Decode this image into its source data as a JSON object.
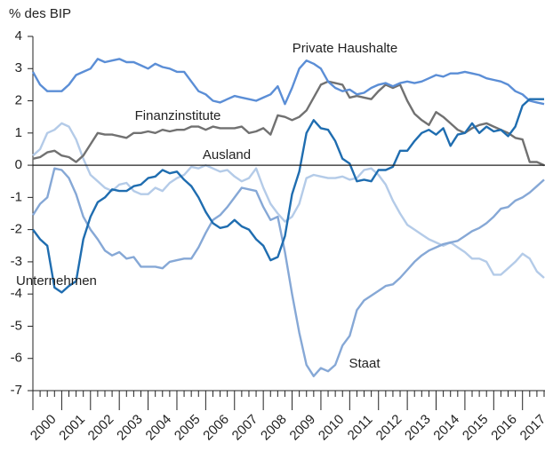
{
  "chart_data": {
    "type": "line",
    "y_label": "% des BIP",
    "categories": [
      "2000",
      null,
      null,
      null,
      "2001",
      null,
      null,
      null,
      "2002",
      null,
      null,
      null,
      "2003",
      null,
      null,
      null,
      "2004",
      null,
      null,
      null,
      "2005",
      null,
      null,
      null,
      "2006",
      null,
      null,
      null,
      "2007",
      null,
      null,
      null,
      "2008",
      null,
      null,
      null,
      "2009",
      null,
      null,
      null,
      "2010",
      null,
      null,
      null,
      "2011",
      null,
      null,
      null,
      "2012",
      null,
      null,
      null,
      "2013",
      null,
      null,
      null,
      "2014",
      null,
      null,
      null,
      "2015",
      null,
      null,
      null,
      "2016",
      null,
      null,
      null,
      "2017",
      null,
      null,
      null
    ],
    "ylim": [
      -7,
      4
    ],
    "yticks": [
      -7,
      -6,
      -5,
      -4,
      -3,
      -2,
      -1,
      0,
      1,
      2,
      3,
      4
    ],
    "series": [
      {
        "name": "Private Haushalte",
        "color": "#5b8ed6",
        "values": [
          2.9,
          2.5,
          2.3,
          2.3,
          2.3,
          2.5,
          2.8,
          2.9,
          3.0,
          3.3,
          3.2,
          3.25,
          3.3,
          3.2,
          3.2,
          3.1,
          3.0,
          3.15,
          3.05,
          3.0,
          2.9,
          2.9,
          2.6,
          2.3,
          2.2,
          2.0,
          1.95,
          2.05,
          2.15,
          2.1,
          2.05,
          2.0,
          2.1,
          2.2,
          2.45,
          1.9,
          2.4,
          3.0,
          3.25,
          3.15,
          3.0,
          2.6,
          2.4,
          2.3,
          2.35,
          2.2,
          2.25,
          2.4,
          2.5,
          2.55,
          2.45,
          2.55,
          2.6,
          2.55,
          2.6,
          2.7,
          2.8,
          2.75,
          2.85,
          2.85,
          2.9,
          2.85,
          2.8,
          2.7,
          2.65,
          2.6,
          2.5,
          2.3,
          2.2,
          2.0,
          1.95,
          1.9
        ]
      },
      {
        "name": "Finanzinstitute",
        "color": "#717171",
        "values": [
          0.2,
          0.25,
          0.4,
          0.45,
          0.3,
          0.25,
          0.1,
          0.3,
          0.65,
          1.0,
          0.95,
          0.95,
          0.9,
          0.85,
          1.0,
          1.0,
          1.05,
          1.0,
          1.1,
          1.05,
          1.1,
          1.1,
          1.2,
          1.2,
          1.1,
          1.2,
          1.15,
          1.15,
          1.15,
          1.2,
          1.0,
          1.05,
          1.15,
          0.95,
          1.55,
          1.5,
          1.4,
          1.5,
          1.7,
          2.1,
          2.5,
          2.6,
          2.55,
          2.5,
          2.1,
          2.15,
          2.1,
          2.05,
          2.3,
          2.5,
          2.4,
          2.5,
          2.0,
          1.6,
          1.4,
          1.25,
          1.65,
          1.5,
          1.3,
          1.1,
          1.0,
          1.15,
          1.25,
          1.3,
          1.2,
          1.1,
          1.0,
          0.85,
          0.8,
          0.1,
          0.1,
          0.0
        ]
      },
      {
        "name": "Ausland",
        "color": "#b4cbe8",
        "values": [
          0.3,
          0.5,
          1.0,
          1.1,
          1.3,
          1.2,
          0.8,
          0.2,
          -0.3,
          -0.5,
          -0.7,
          -0.8,
          -0.6,
          -0.55,
          -0.8,
          -0.9,
          -0.9,
          -0.7,
          -0.8,
          -0.55,
          -0.4,
          -0.3,
          -0.05,
          -0.1,
          0.0,
          -0.1,
          -0.2,
          -0.15,
          -0.35,
          -0.5,
          -0.4,
          -0.1,
          -0.7,
          -1.2,
          -1.5,
          -1.75,
          -1.6,
          -1.2,
          -0.4,
          -0.3,
          -0.35,
          -0.4,
          -0.4,
          -0.35,
          -0.45,
          -0.4,
          -0.15,
          -0.1,
          -0.3,
          -0.6,
          -1.1,
          -1.5,
          -1.85,
          -2.0,
          -2.15,
          -2.3,
          -2.4,
          -2.5,
          -2.4,
          -2.55,
          -2.7,
          -2.9,
          -2.9,
          -3.0,
          -3.4,
          -3.4,
          -3.2,
          -3.0,
          -2.75,
          -2.9,
          -3.3,
          -3.5
        ]
      },
      {
        "name": "Unternehmen",
        "color": "#1f6db0",
        "values": [
          -2.0,
          -2.3,
          -2.5,
          -3.8,
          -3.95,
          -3.75,
          -3.6,
          -2.3,
          -1.6,
          -1.15,
          -1.0,
          -0.75,
          -0.8,
          -0.8,
          -0.65,
          -0.6,
          -0.4,
          -0.35,
          -0.15,
          -0.25,
          -0.2,
          -0.45,
          -0.65,
          -1.0,
          -1.45,
          -1.8,
          -1.95,
          -1.9,
          -1.7,
          -1.9,
          -2.0,
          -2.3,
          -2.5,
          -2.95,
          -2.85,
          -2.2,
          -0.9,
          -0.2,
          1.0,
          1.4,
          1.15,
          1.1,
          0.75,
          0.2,
          0.05,
          -0.5,
          -0.45,
          -0.5,
          -0.15,
          -0.15,
          -0.05,
          0.45,
          0.45,
          0.75,
          1.0,
          1.1,
          0.95,
          1.15,
          0.6,
          0.95,
          1.0,
          1.3,
          1.0,
          1.2,
          1.05,
          1.1,
          0.9,
          1.2,
          1.85,
          2.05,
          2.05,
          2.05
        ]
      },
      {
        "name": "Staat",
        "color": "#86a8d6",
        "values": [
          -1.55,
          -1.2,
          -1.0,
          -0.1,
          -0.15,
          -0.4,
          -0.9,
          -1.6,
          -2.0,
          -2.3,
          -2.65,
          -2.8,
          -2.7,
          -2.9,
          -2.85,
          -3.15,
          -3.15,
          -3.15,
          -3.2,
          -3.0,
          -2.95,
          -2.9,
          -2.9,
          -2.55,
          -2.1,
          -1.7,
          -1.55,
          -1.3,
          -1.0,
          -0.7,
          -0.75,
          -0.8,
          -1.3,
          -1.7,
          -1.6,
          -2.7,
          -4.0,
          -5.2,
          -6.2,
          -6.55,
          -6.3,
          -6.4,
          -6.2,
          -5.6,
          -5.3,
          -4.5,
          -4.2,
          -4.05,
          -3.9,
          -3.75,
          -3.7,
          -3.5,
          -3.25,
          -3.0,
          -2.8,
          -2.65,
          -2.55,
          -2.45,
          -2.4,
          -2.35,
          -2.2,
          -2.05,
          -1.95,
          -1.8,
          -1.6,
          -1.35,
          -1.3,
          -1.1,
          -1.0,
          -0.85,
          -0.65,
          -0.45
        ]
      }
    ]
  }
}
